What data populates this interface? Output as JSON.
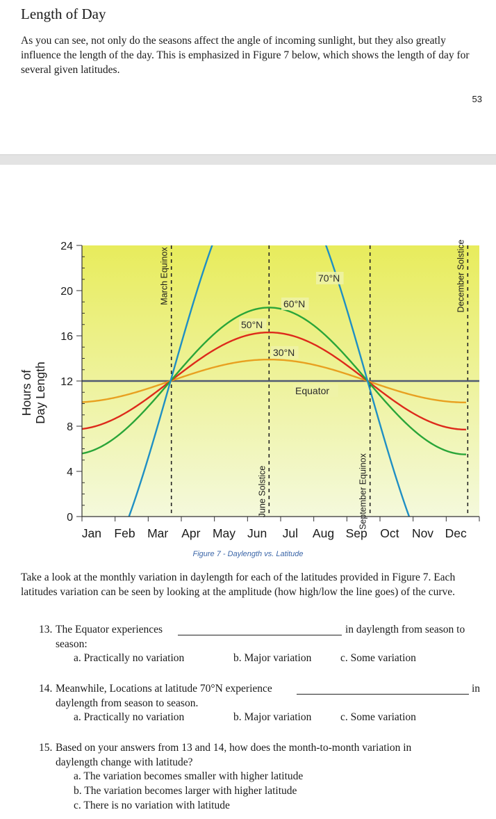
{
  "page": {
    "title": "Length of Day",
    "intro": "As you can see, not only do the seasons affect the angle of incoming sunlight, but they also greatly influence the length of the day. This is emphasized in Figure 7 below, which shows the length of day for several given latitudes.",
    "page_number": "53",
    "caption": "Figure 7 - Daylength vs. Latitude",
    "instruction": "Take a look at the monthly variation in daylength for each of the latitudes provided in Figure 7. Each latitudes variation can be seen by looking at the amplitude (how high/low the line goes) of the curve."
  },
  "questions": [
    {
      "number": "13.",
      "stem_before": "The Equator experiences",
      "stem_after": "in daylength from season to",
      "stem_cont": "season:",
      "options": [
        "a.  Practically no variation",
        "b. Major variation",
        "c. Some variation"
      ]
    },
    {
      "number": "14.",
      "stem_before": "Meanwhile, Locations at latitude 70°N experience",
      "stem_after": "in",
      "stem_cont": "daylength from season to season.",
      "options": [
        "a.  Practically no variation",
        "b. Major variation",
        "c. Some variation"
      ]
    },
    {
      "number": "15.",
      "stem_before": "Based on your answers from 13 and 14, how does the month-to-month variation in",
      "stem_cont": "daylength change with latitude?",
      "options": [
        "a.  The variation becomes smaller with higher latitude",
        "b.  The variation becomes larger with higher latitude",
        "c.  There is no variation with latitude"
      ]
    }
  ],
  "chart_data": {
    "type": "line",
    "title": "",
    "xlabel": "",
    "ylabel": "Hours of Day Length",
    "ylabel_lines": [
      "Hours of",
      "Day Length"
    ],
    "ylim": [
      0,
      24
    ],
    "yticks": [
      0,
      4,
      8,
      12,
      16,
      20,
      24
    ],
    "categories": [
      "Jan",
      "Feb",
      "Mar",
      "Apr",
      "May",
      "Jun",
      "Jul",
      "Aug",
      "Sep",
      "Oct",
      "Nov",
      "Dec"
    ],
    "series": [
      {
        "name": "Equator",
        "color": "#505a72",
        "x": [
          0,
          12
        ],
        "y": [
          12,
          12
        ]
      },
      {
        "name": "30°N",
        "color": "#e8a020",
        "x": [
          0,
          2.7,
          5.65,
          8.7,
          11.65
        ],
        "y": [
          10.1,
          12,
          13.9,
          12,
          10.1
        ]
      },
      {
        "name": "50°N",
        "color": "#dd2a1b",
        "x": [
          0,
          2.7,
          5.65,
          8.7,
          11.65
        ],
        "y": [
          8.1,
          12,
          16.3,
          12,
          7.9
        ]
      },
      {
        "name": "60°N",
        "color": "#2aa539",
        "x": [
          0,
          2.7,
          5.65,
          8.7,
          11.65
        ],
        "y": [
          6.1,
          12,
          18.5,
          12,
          5.6
        ]
      },
      {
        "name": "70°N",
        "color": "#1f8fc4",
        "x": [
          0.3,
          2.7,
          8.7,
          11.35
        ],
        "y": [
          0,
          12,
          12,
          0
        ]
      }
    ],
    "markers": [
      {
        "label": "March Equinox",
        "x": 2.7
      },
      {
        "label": "June Solstice",
        "x": 5.65
      },
      {
        "label": "September Equinox",
        "x": 8.7
      },
      {
        "label": "December Solstice",
        "x": 11.65
      }
    ],
    "colors": {
      "background_top": "#e8ec5c",
      "background_bottom": "#f4f9dc"
    },
    "grid": false,
    "legend": "inline labels"
  }
}
